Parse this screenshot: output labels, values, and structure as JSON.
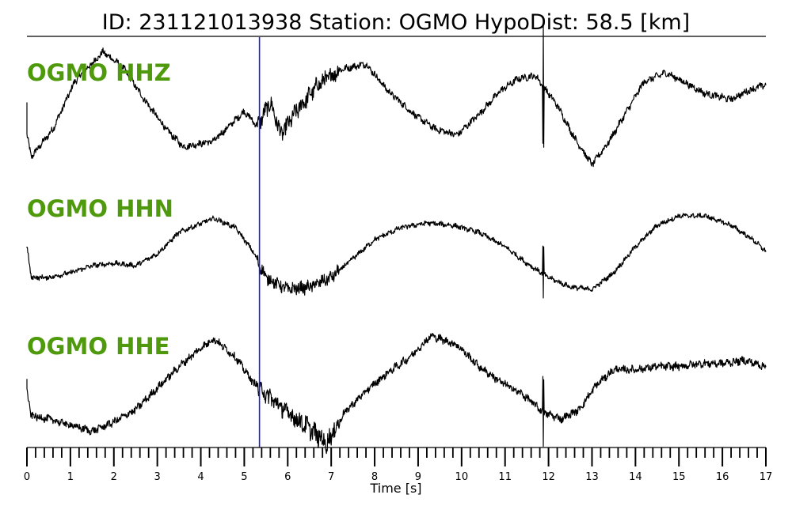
{
  "title": "ID: 231121013938   Station: OGMO   HypoDist:    58.5 [km]",
  "colors": {
    "trace": "#000000",
    "label": "#4f9a0c",
    "pick": "#1f1fd6",
    "axis": "#000000"
  },
  "chart_data": {
    "type": "line",
    "title": "ID: 231121013938   Station: OGMO   HypoDist:    58.5 [km]",
    "xlabel": "Time [s]",
    "ylabel": "",
    "xlim": [
      0,
      17
    ],
    "ylim": [
      -1,
      1
    ],
    "xticks": [
      "0",
      "1",
      "2",
      "3",
      "4",
      "5",
      "6",
      "7",
      "8",
      "9",
      "10",
      "11",
      "12",
      "13",
      "14",
      "15",
      "16",
      "17"
    ],
    "pick_time": 5.35,
    "series": [
      {
        "name": "OGMO HHZ",
        "noise": 0.05,
        "spike_at": 11.88,
        "x": [
          0,
          0.1,
          0.6,
          1.1,
          1.75,
          2.2,
          2.7,
          3.2,
          3.6,
          4.3,
          5.0,
          5.3,
          5.6,
          5.85,
          6.2,
          6.7,
          7.2,
          7.8,
          8.3,
          8.9,
          9.4,
          9.9,
          10.4,
          10.9,
          11.3,
          11.7,
          12.2,
          12.6,
          13.0,
          13.4,
          13.8,
          14.2,
          14.7,
          15.1,
          15.6,
          16.2,
          16.6,
          17.0
        ],
        "y": [
          -0.45,
          -0.82,
          -0.35,
          0.45,
          0.95,
          0.7,
          0.15,
          -0.35,
          -0.65,
          -0.55,
          -0.05,
          -0.3,
          0.1,
          -0.45,
          -0.05,
          0.4,
          0.65,
          0.75,
          0.3,
          -0.1,
          -0.35,
          -0.45,
          -0.1,
          0.3,
          0.5,
          0.55,
          0.05,
          -0.5,
          -0.95,
          -0.55,
          -0.05,
          0.45,
          0.6,
          0.45,
          0.25,
          0.15,
          0.3,
          0.4
        ]
      },
      {
        "name": "OGMO HHN",
        "noise": 0.045,
        "spike_at": 11.88,
        "x": [
          0,
          0.1,
          0.5,
          1.0,
          1.5,
          2.0,
          2.5,
          3.0,
          3.5,
          4.3,
          4.8,
          5.2,
          5.5,
          6.0,
          6.5,
          7.0,
          7.5,
          8.0,
          8.6,
          9.2,
          9.8,
          10.4,
          11.0,
          11.5,
          12.0,
          12.5,
          13.0,
          13.5,
          14.0,
          14.5,
          15.0,
          15.6,
          16.2,
          16.7,
          17.0
        ],
        "y": [
          0.1,
          -0.55,
          -0.55,
          -0.45,
          -0.3,
          -0.25,
          -0.3,
          -0.05,
          0.4,
          0.7,
          0.5,
          0.0,
          -0.55,
          -0.8,
          -0.75,
          -0.55,
          -0.15,
          0.25,
          0.5,
          0.6,
          0.55,
          0.4,
          0.1,
          -0.25,
          -0.55,
          -0.75,
          -0.8,
          -0.45,
          0.1,
          0.55,
          0.75,
          0.75,
          0.55,
          0.25,
          0.0
        ]
      },
      {
        "name": "OGMO HHE",
        "noise": 0.055,
        "spike_at": 11.88,
        "x": [
          0,
          0.1,
          0.5,
          1.0,
          1.5,
          2.0,
          2.5,
          3.0,
          3.5,
          4.0,
          4.3,
          4.8,
          5.2,
          5.5,
          6.0,
          6.5,
          6.9,
          7.3,
          7.8,
          8.3,
          8.8,
          9.3,
          9.9,
          10.4,
          10.9,
          11.4,
          11.9,
          12.3,
          12.7,
          13.1,
          13.5,
          14.0,
          14.5,
          15.0,
          15.5,
          16.0,
          16.5,
          17.0
        ],
        "y": [
          -0.1,
          -0.5,
          -0.55,
          -0.65,
          -0.75,
          -0.6,
          -0.4,
          -0.05,
          0.3,
          0.6,
          0.75,
          0.45,
          0.05,
          -0.15,
          -0.45,
          -0.7,
          -0.95,
          -0.45,
          -0.1,
          0.2,
          0.45,
          0.8,
          0.65,
          0.3,
          0.05,
          -0.15,
          -0.45,
          -0.55,
          -0.4,
          0.0,
          0.25,
          0.25,
          0.3,
          0.3,
          0.35,
          0.35,
          0.4,
          0.3
        ]
      }
    ]
  }
}
